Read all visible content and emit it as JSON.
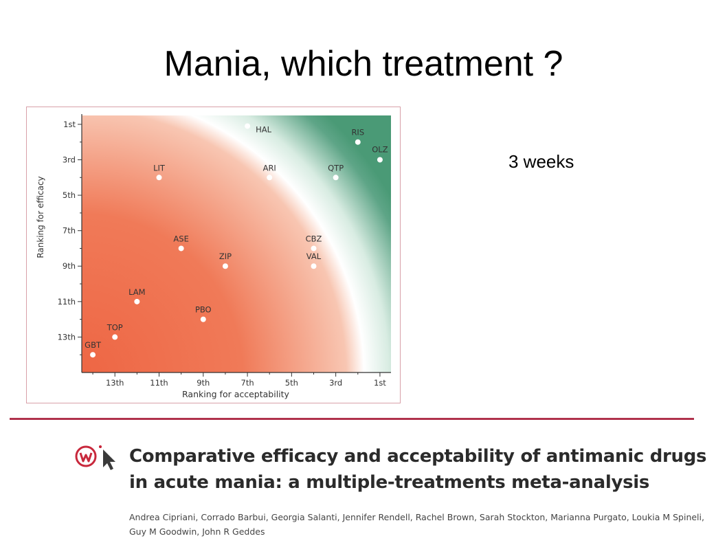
{
  "slide": {
    "title": "Mania, which treatment ?",
    "duration": "3 weeks"
  },
  "paper": {
    "title_line1": "Comparative efficacy and acceptability of antimanic drugs",
    "title_line2": "in acute mania: a multiple-treatments meta-analysis",
    "authors_line1": "Andrea Cipriani, Corrado Barbui, Georgia Salanti, Jennifer Rendell, Rachel Brown, Sarah Stockton, Marianna Purgato, Loukia M Spineli,",
    "authors_line2": "Guy M Goodwin, John R Geddes"
  },
  "colors": {
    "accent": "#b0324c",
    "gradient_red": "#ef6a47",
    "gradient_green": "#4a9a76",
    "logo_red": "#c8283c",
    "logo_arrow": "#3a3a3a"
  },
  "icons": {
    "logo": "cursor-click-logo-icon"
  },
  "chart_data": {
    "type": "scatter",
    "xlabel": "Ranking for acceptability",
    "ylabel": "Ranking for efficacy",
    "xlim": [
      14.5,
      0.5
    ],
    "ylim": [
      15,
      0.5
    ],
    "x_ticks": [
      {
        "value": 13,
        "label": "13th"
      },
      {
        "value": 11,
        "label": "11th"
      },
      {
        "value": 9,
        "label": "9th"
      },
      {
        "value": 7,
        "label": "7th"
      },
      {
        "value": 5,
        "label": "5th"
      },
      {
        "value": 3,
        "label": "3rd"
      },
      {
        "value": 1,
        "label": "1st"
      }
    ],
    "y_ticks": [
      {
        "value": 1,
        "label": "1st"
      },
      {
        "value": 3,
        "label": "3rd"
      },
      {
        "value": 5,
        "label": "5th"
      },
      {
        "value": 7,
        "label": "7th"
      },
      {
        "value": 9,
        "label": "9th"
      },
      {
        "value": 11,
        "label": "11th"
      },
      {
        "value": 13,
        "label": "13th"
      }
    ],
    "points": [
      {
        "label": "HAL",
        "x": 7,
        "y": 1.1
      },
      {
        "label": "RIS",
        "x": 2,
        "y": 2
      },
      {
        "label": "OLZ",
        "x": 1,
        "y": 3
      },
      {
        "label": "LIT",
        "x": 11,
        "y": 4
      },
      {
        "label": "ARI",
        "x": 6,
        "y": 4
      },
      {
        "label": "QTP",
        "x": 3,
        "y": 4
      },
      {
        "label": "ASE",
        "x": 10,
        "y": 8
      },
      {
        "label": "CBZ",
        "x": 4,
        "y": 8
      },
      {
        "label": "ZIP",
        "x": 8,
        "y": 9
      },
      {
        "label": "VAL",
        "x": 4,
        "y": 9
      },
      {
        "label": "LAM",
        "x": 12,
        "y": 11
      },
      {
        "label": "PBO",
        "x": 9,
        "y": 12
      },
      {
        "label": "TOP",
        "x": 13,
        "y": 13
      },
      {
        "label": "GBT",
        "x": 14,
        "y": 14
      }
    ]
  }
}
